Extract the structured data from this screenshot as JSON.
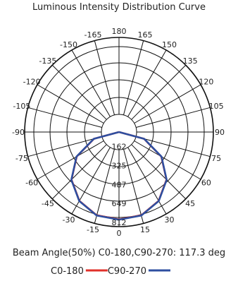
{
  "chart_data": {
    "type": "polar",
    "title": "Luminous Intensity Distribution Curve",
    "angle_ticks": [
      {
        "angle": 180,
        "label": "180"
      },
      {
        "angle": -165,
        "label": "-165"
      },
      {
        "angle": 165,
        "label": "165"
      },
      {
        "angle": -150,
        "label": "-150"
      },
      {
        "angle": 150,
        "label": "150"
      },
      {
        "angle": -135,
        "label": "-135"
      },
      {
        "angle": 135,
        "label": "135"
      },
      {
        "angle": -120,
        "label": "-120"
      },
      {
        "angle": 120,
        "label": "120"
      },
      {
        "angle": -105,
        "label": "-105"
      },
      {
        "angle": 105,
        "label": "105"
      },
      {
        "angle": -90,
        "label": "-90"
      },
      {
        "angle": 90,
        "label": "90"
      },
      {
        "angle": -75,
        "label": "-75"
      },
      {
        "angle": 75,
        "label": "75"
      },
      {
        "angle": -60,
        "label": "-60"
      },
      {
        "angle": 60,
        "label": "60"
      },
      {
        "angle": -45,
        "label": "-45"
      },
      {
        "angle": 45,
        "label": "45"
      },
      {
        "angle": -30,
        "label": "-30"
      },
      {
        "angle": 30,
        "label": "30"
      },
      {
        "angle": -15,
        "label": "-15"
      },
      {
        "angle": 15,
        "label": "15"
      },
      {
        "angle": 0,
        "label": "0"
      }
    ],
    "radial_ticks": [
      162,
      325,
      487,
      649,
      812
    ],
    "radial_max": 812,
    "series": [
      {
        "name": "C0-180",
        "color": "#e0302a",
        "angles": [
          -90,
          -75,
          -60,
          -45,
          -30,
          -15,
          0,
          15,
          30,
          45,
          60,
          75,
          90
        ],
        "values": [
          0,
          222,
          420,
          578,
          682,
          740,
          750,
          740,
          682,
          578,
          420,
          222,
          0
        ]
      },
      {
        "name": "C90-270",
        "color": "#2e4fa0",
        "angles": [
          -90,
          -75,
          -60,
          -45,
          -30,
          -15,
          0,
          15,
          30,
          45,
          60,
          75,
          90
        ],
        "values": [
          0,
          224,
          422,
          580,
          684,
          742,
          752,
          742,
          684,
          580,
          422,
          224,
          0
        ]
      }
    ],
    "beam_angle_text": "Beam Angle(50%) C0-180,C90-270: 117.3 deg"
  }
}
